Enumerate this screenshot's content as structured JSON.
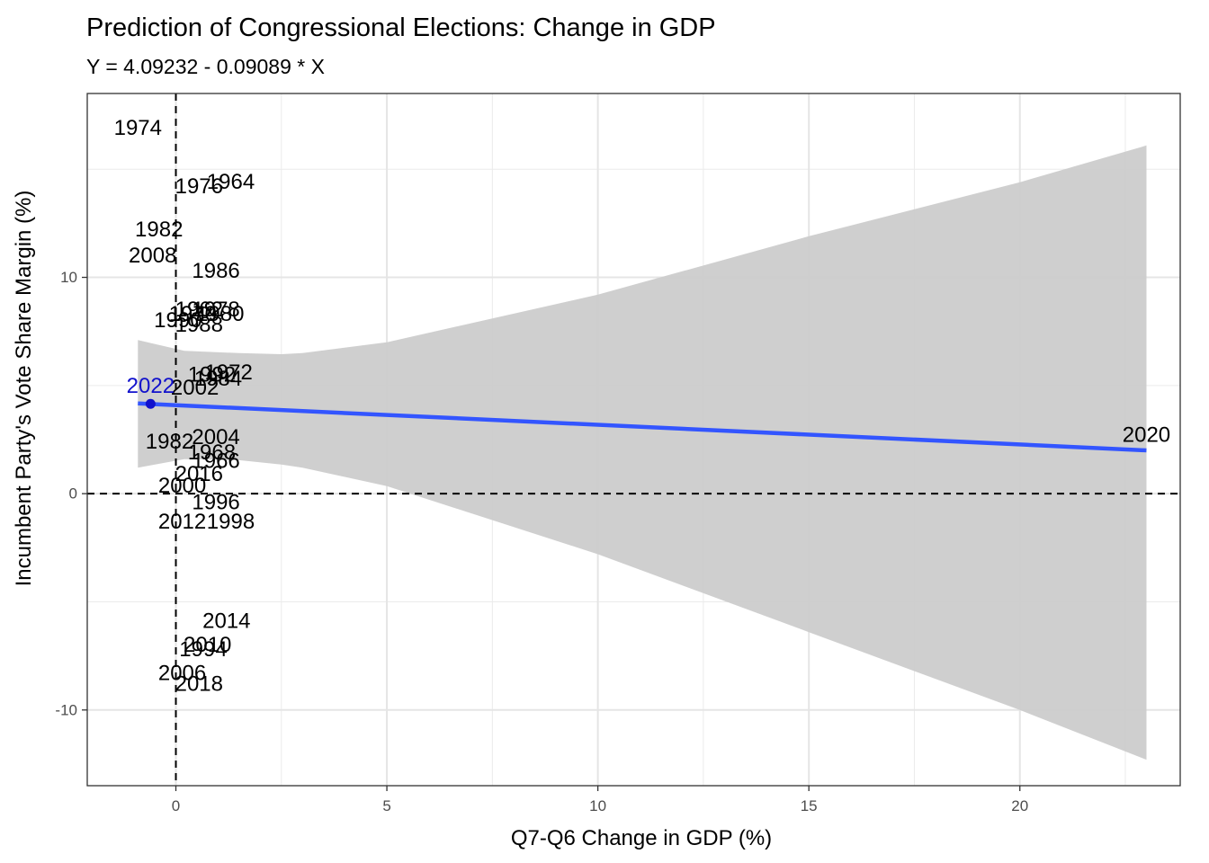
{
  "chart_data": {
    "type": "scatter",
    "title": "Prediction of Congressional Elections: Change in GDP",
    "subtitle": "Y = 4.09232 - 0.09089 * X",
    "xlabel": "Q7-Q6 Change in GDP (%)",
    "ylabel": "Incumbent Party's Vote Share Margin (%)",
    "xlim": [
      -2.1,
      23.8
    ],
    "ylim": [
      -13.5,
      18.5
    ],
    "x_ticks": [
      0,
      5,
      10,
      15,
      20
    ],
    "y_ticks": [
      -10,
      0,
      10
    ],
    "grid": true,
    "reference_lines": {
      "x": 0,
      "y": 0
    },
    "fit": {
      "intercept": 4.09232,
      "slope": -0.09089,
      "x_range": [
        -0.9,
        23.0
      ],
      "color": "#3355ff"
    },
    "confidence_band": {
      "color": "#cccccc",
      "upper": [
        [
          -0.9,
          7.1
        ],
        [
          0.2,
          6.6
        ],
        [
          1.5,
          6.5
        ],
        [
          2.5,
          6.45
        ],
        [
          3.0,
          6.5
        ],
        [
          5,
          7.0
        ],
        [
          10,
          9.2
        ],
        [
          15,
          11.9
        ],
        [
          20,
          14.4
        ],
        [
          23.0,
          16.1
        ]
      ],
      "lower": [
        [
          -0.9,
          1.2
        ],
        [
          0.2,
          1.6
        ],
        [
          1.5,
          1.55
        ],
        [
          2.5,
          1.35
        ],
        [
          3.0,
          1.2
        ],
        [
          5,
          0.35
        ],
        [
          10,
          -2.8
        ],
        [
          15,
          -6.4
        ],
        [
          20,
          -10.0
        ],
        [
          23.0,
          -12.3
        ]
      ]
    },
    "highlight": {
      "label": "2022",
      "x": -0.6,
      "y": 4.15,
      "color": "#1111cc"
    },
    "points": [
      {
        "label": "1974",
        "x": -0.9,
        "y": 16.9
      },
      {
        "label": "1976",
        "x": 0.55,
        "y": 14.2
      },
      {
        "label": "1964",
        "x": 1.3,
        "y": 14.4
      },
      {
        "label": "1982",
        "x": -0.4,
        "y": 12.2
      },
      {
        "label": "2008",
        "x": -0.55,
        "y": 11.0
      },
      {
        "label": "1986",
        "x": 0.95,
        "y": 10.3
      },
      {
        "label": "1962",
        "x": 0.55,
        "y": 8.5
      },
      {
        "label": "1978",
        "x": 0.95,
        "y": 8.5
      },
      {
        "label": "1980",
        "x": 1.05,
        "y": 8.3
      },
      {
        "label": "1970",
        "x": 0.4,
        "y": 8.3
      },
      {
        "label": "1990",
        "x": 0.05,
        "y": 8.0
      },
      {
        "label": "1988",
        "x": 0.55,
        "y": 7.8
      },
      {
        "label": "1992",
        "x": 0.85,
        "y": 5.5
      },
      {
        "label": "1972",
        "x": 1.25,
        "y": 5.6
      },
      {
        "label": "1984",
        "x": 1.0,
        "y": 5.3
      },
      {
        "label": "2002",
        "x": 0.45,
        "y": 4.9
      },
      {
        "label": "2004",
        "x": 0.95,
        "y": 2.6
      },
      {
        "label": "1982",
        "x": -0.15,
        "y": 2.4
      },
      {
        "label": "1968",
        "x": 0.85,
        "y": 1.9
      },
      {
        "label": "1966",
        "x": 0.95,
        "y": 1.5
      },
      {
        "label": "2016",
        "x": 0.55,
        "y": 0.9
      },
      {
        "label": "2000",
        "x": 0.15,
        "y": 0.35
      },
      {
        "label": "1996",
        "x": 0.95,
        "y": -0.4
      },
      {
        "label": "2012",
        "x": 0.15,
        "y": -1.3
      },
      {
        "label": "1998",
        "x": 1.3,
        "y": -1.3
      },
      {
        "label": "2014",
        "x": 1.2,
        "y": -5.9
      },
      {
        "label": "2010",
        "x": 0.75,
        "y": -7.0
      },
      {
        "label": "1994",
        "x": 0.65,
        "y": -7.2
      },
      {
        "label": "2006",
        "x": 0.15,
        "y": -8.3
      },
      {
        "label": "2018",
        "x": 0.55,
        "y": -8.8
      },
      {
        "label": "2020",
        "x": 23.0,
        "y": 2.7
      }
    ]
  }
}
